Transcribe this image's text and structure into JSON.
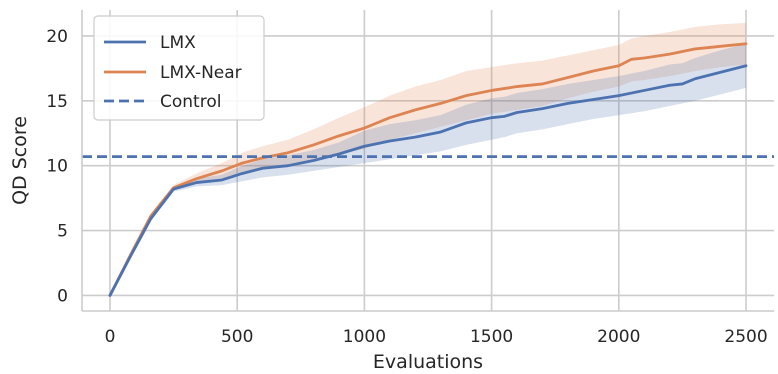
{
  "chart_data": {
    "type": "line",
    "xlabel": "Evaluations",
    "ylabel": "QD Score",
    "xlim": [
      -110,
      2610
    ],
    "ylim": [
      -1.2,
      22
    ],
    "x_ticks": [
      0,
      500,
      1000,
      1500,
      2000,
      2500
    ],
    "y_ticks": [
      0,
      5,
      10,
      15,
      20
    ],
    "grid": true,
    "legend_position": "top-left",
    "colors": {
      "LMX": "#4c72b0",
      "LMX-Near": "#dd8452",
      "Control": "#4c72b0"
    },
    "series": [
      {
        "name": "LMX",
        "style": "solid",
        "x": [
          0,
          80,
          160,
          250,
          340,
          440,
          520,
          600,
          700,
          800,
          900,
          1000,
          1100,
          1200,
          1300,
          1400,
          1500,
          1550,
          1600,
          1700,
          1800,
          1900,
          2000,
          2100,
          2200,
          2250,
          2300,
          2400,
          2500
        ],
        "values": [
          0,
          3.0,
          5.9,
          8.2,
          8.7,
          8.9,
          9.4,
          9.8,
          10.0,
          10.4,
          10.9,
          11.5,
          11.9,
          12.2,
          12.6,
          13.3,
          13.7,
          13.8,
          14.1,
          14.4,
          14.8,
          15.1,
          15.4,
          15.8,
          16.2,
          16.3,
          16.7,
          17.2,
          17.7
        ],
        "lower": [
          0,
          2.9,
          5.8,
          8.0,
          8.4,
          8.5,
          8.8,
          9.1,
          9.3,
          9.6,
          9.9,
          10.2,
          10.5,
          10.8,
          11.1,
          11.6,
          12.0,
          12.2,
          12.5,
          12.8,
          13.2,
          13.6,
          13.9,
          14.2,
          14.6,
          14.8,
          15.0,
          15.5,
          16.0
        ],
        "upper": [
          0,
          3.1,
          6.0,
          8.4,
          9.0,
          9.3,
          10.0,
          10.5,
          10.8,
          11.2,
          11.8,
          12.7,
          13.2,
          13.5,
          13.9,
          14.7,
          15.2,
          15.3,
          15.6,
          15.9,
          16.3,
          16.6,
          16.9,
          17.3,
          17.8,
          17.9,
          18.3,
          18.9,
          19.4
        ]
      },
      {
        "name": "LMX-Near",
        "style": "solid",
        "x": [
          0,
          80,
          160,
          250,
          340,
          440,
          520,
          600,
          700,
          800,
          900,
          1000,
          1100,
          1200,
          1300,
          1400,
          1500,
          1600,
          1700,
          1800,
          1900,
          2000,
          2050,
          2100,
          2200,
          2250,
          2300,
          2400,
          2500
        ],
        "values": [
          0,
          3.1,
          6.1,
          8.3,
          9.0,
          9.6,
          10.2,
          10.6,
          11.0,
          11.6,
          12.3,
          12.9,
          13.7,
          14.3,
          14.8,
          15.4,
          15.8,
          16.1,
          16.3,
          16.8,
          17.3,
          17.7,
          18.2,
          18.3,
          18.6,
          18.8,
          19.0,
          19.2,
          19.4
        ],
        "lower": [
          0,
          3.0,
          5.9,
          8.1,
          8.6,
          9.0,
          9.4,
          9.7,
          10.0,
          10.4,
          10.9,
          11.3,
          12.0,
          12.5,
          13.0,
          13.5,
          14.0,
          14.3,
          14.6,
          15.2,
          15.7,
          16.1,
          16.5,
          16.6,
          16.9,
          17.1,
          17.3,
          17.6,
          17.8
        ],
        "upper": [
          0,
          3.2,
          6.3,
          8.5,
          9.4,
          10.2,
          11.0,
          11.5,
          12.0,
          12.8,
          13.7,
          14.5,
          15.4,
          16.1,
          16.6,
          17.3,
          17.6,
          17.9,
          18.1,
          18.5,
          18.9,
          19.3,
          19.8,
          20.0,
          20.3,
          20.5,
          20.7,
          20.9,
          21.0
        ]
      },
      {
        "name": "Control",
        "style": "dashed",
        "constant": 10.7
      }
    ]
  }
}
